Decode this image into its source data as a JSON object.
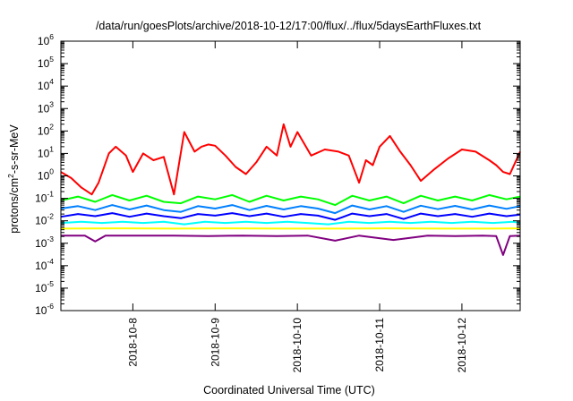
{
  "chart_data": {
    "type": "line",
    "title": "/data/run/goesPlots/archive/2018-10-12/17:00/flux/../flux/5daysEarthFluxes.txt",
    "xlabel": "Coordinated Universal Time (UTC)",
    "ylabel": "protons/cm²-s-sr-MeV",
    "ylabel_parts": {
      "main": "protons/cm",
      "sup": "2",
      "rest": "-s-sr-MeV"
    },
    "x_range": [
      "2018-10-07T03:00",
      "2018-10-12T17:00"
    ],
    "y_scale": "log",
    "y_range": [
      1e-06,
      1000000.0
    ],
    "y_ticks": [
      {
        "value": 1e-06,
        "base": "10",
        "exp": "-6"
      },
      {
        "value": 1e-05,
        "base": "10",
        "exp": "-5"
      },
      {
        "value": 0.0001,
        "base": "10",
        "exp": "-4"
      },
      {
        "value": 0.001,
        "base": "10",
        "exp": "-3"
      },
      {
        "value": 0.01,
        "base": "10",
        "exp": "-2"
      },
      {
        "value": 0.1,
        "base": "10",
        "exp": "-1"
      },
      {
        "value": 1.0,
        "base": "10",
        "exp": "0"
      },
      {
        "value": 10.0,
        "base": "10",
        "exp": "1"
      },
      {
        "value": 100.0,
        "base": "10",
        "exp": "2"
      },
      {
        "value": 1000.0,
        "base": "10",
        "exp": "3"
      },
      {
        "value": 10000.0,
        "base": "10",
        "exp": "4"
      },
      {
        "value": 100000.0,
        "base": "10",
        "exp": "5"
      },
      {
        "value": 1000000.0,
        "base": "10",
        "exp": "6"
      }
    ],
    "x_ticks": [
      {
        "label": "2018-10-8",
        "value": "2018-10-08T00:00"
      },
      {
        "label": "2018-10-9",
        "value": "2018-10-09T00:00"
      },
      {
        "label": "2018-10-10",
        "value": "2018-10-10T00:00"
      },
      {
        "label": "2018-10-11",
        "value": "2018-10-11T00:00"
      },
      {
        "label": "2018-10-12",
        "value": "2018-10-12T00:00"
      }
    ],
    "grid": false,
    "legend": "none",
    "series": [
      {
        "color": "#800080",
        "x": [
          "2018-10-07T03:00",
          "2018-10-07T10:00",
          "2018-10-07T13:00",
          "2018-10-07T16:00",
          "2018-10-07T22:00",
          "2018-10-08T05:00",
          "2018-10-08T12:00",
          "2018-10-08T22:00",
          "2018-10-09T08:00",
          "2018-10-09T18:00",
          "2018-10-10T03:00",
          "2018-10-10T11:00",
          "2018-10-10T18:00",
          "2018-10-11T04:00",
          "2018-10-11T14:00",
          "2018-10-11T22:00",
          "2018-10-12T06:00",
          "2018-10-12T10:00",
          "2018-10-12T12:00",
          "2018-10-12T14:00",
          "2018-10-12T17:00"
        ],
        "y": [
          0.0022,
          0.0022,
          0.0012,
          0.0022,
          0.0022,
          0.0022,
          0.0022,
          0.0021,
          0.0022,
          0.0021,
          0.0022,
          0.0013,
          0.0022,
          0.0014,
          0.0022,
          0.0021,
          0.0022,
          0.0021,
          0.0003,
          0.0021,
          0.0022
        ]
      },
      {
        "color": "#ffff00",
        "x": [
          "2018-10-07T03:00",
          "2018-10-07T22:00",
          "2018-10-08T12:00",
          "2018-10-09T04:00",
          "2018-10-09T20:00",
          "2018-10-10T10:00",
          "2018-10-11T02:00",
          "2018-10-11T18:00",
          "2018-10-12T08:00",
          "2018-10-12T17:00"
        ],
        "y": [
          0.0045,
          0.0046,
          0.0045,
          0.0046,
          0.0045,
          0.0045,
          0.0046,
          0.0045,
          0.0045,
          0.0046
        ]
      },
      {
        "color": "#00ffff",
        "x": [
          "2018-10-07T03:00",
          "2018-10-07T09:00",
          "2018-10-07T15:00",
          "2018-10-07T21:00",
          "2018-10-08T03:00",
          "2018-10-08T09:00",
          "2018-10-08T15:00",
          "2018-10-08T21:00",
          "2018-10-09T03:00",
          "2018-10-09T09:00",
          "2018-10-09T15:00",
          "2018-10-09T21:00",
          "2018-10-10T03:00",
          "2018-10-10T09:00",
          "2018-10-10T15:00",
          "2018-10-10T21:00",
          "2018-10-11T03:00",
          "2018-10-11T09:00",
          "2018-10-11T15:00",
          "2018-10-11T21:00",
          "2018-10-12T03:00",
          "2018-10-12T09:00",
          "2018-10-12T15:00",
          "2018-10-12T17:00"
        ],
        "y": [
          0.008,
          0.009,
          0.008,
          0.009,
          0.008,
          0.009,
          0.007,
          0.009,
          0.008,
          0.009,
          0.008,
          0.009,
          0.008,
          0.007,
          0.009,
          0.008,
          0.009,
          0.008,
          0.009,
          0.008,
          0.009,
          0.008,
          0.009,
          0.008
        ]
      },
      {
        "color": "#0000ff",
        "x": [
          "2018-10-07T03:00",
          "2018-10-07T08:00",
          "2018-10-07T13:00",
          "2018-10-07T18:00",
          "2018-10-07T23:00",
          "2018-10-08T04:00",
          "2018-10-08T09:00",
          "2018-10-08T14:00",
          "2018-10-08T19:00",
          "2018-10-09T00:00",
          "2018-10-09T05:00",
          "2018-10-09T10:00",
          "2018-10-09T15:00",
          "2018-10-09T20:00",
          "2018-10-10T01:00",
          "2018-10-10T06:00",
          "2018-10-10T11:00",
          "2018-10-10T16:00",
          "2018-10-10T21:00",
          "2018-10-11T02:00",
          "2018-10-11T07:00",
          "2018-10-11T12:00",
          "2018-10-11T17:00",
          "2018-10-11T22:00",
          "2018-10-12T03:00",
          "2018-10-12T08:00",
          "2018-10-12T13:00",
          "2018-10-12T17:00"
        ],
        "y": [
          0.015,
          0.02,
          0.016,
          0.022,
          0.015,
          0.021,
          0.016,
          0.013,
          0.02,
          0.017,
          0.022,
          0.016,
          0.021,
          0.015,
          0.02,
          0.017,
          0.011,
          0.021,
          0.016,
          0.02,
          0.012,
          0.021,
          0.016,
          0.02,
          0.015,
          0.021,
          0.016,
          0.019
        ]
      },
      {
        "color": "#0080ff",
        "x": [
          "2018-10-07T03:00",
          "2018-10-07T08:00",
          "2018-10-07T13:00",
          "2018-10-07T18:00",
          "2018-10-07T23:00",
          "2018-10-08T04:00",
          "2018-10-08T09:00",
          "2018-10-08T14:00",
          "2018-10-08T19:00",
          "2018-10-09T00:00",
          "2018-10-09T05:00",
          "2018-10-09T10:00",
          "2018-10-09T15:00",
          "2018-10-09T20:00",
          "2018-10-10T01:00",
          "2018-10-10T06:00",
          "2018-10-10T11:00",
          "2018-10-10T16:00",
          "2018-10-10T21:00",
          "2018-10-11T02:00",
          "2018-10-11T07:00",
          "2018-10-11T12:00",
          "2018-10-11T17:00",
          "2018-10-11T22:00",
          "2018-10-12T03:00",
          "2018-10-12T08:00",
          "2018-10-12T13:00",
          "2018-10-12T17:00"
        ],
        "y": [
          0.035,
          0.045,
          0.03,
          0.05,
          0.032,
          0.048,
          0.03,
          0.025,
          0.045,
          0.035,
          0.05,
          0.03,
          0.046,
          0.032,
          0.045,
          0.035,
          0.022,
          0.048,
          0.032,
          0.045,
          0.025,
          0.047,
          0.033,
          0.046,
          0.032,
          0.048,
          0.034,
          0.045
        ]
      },
      {
        "color": "#00ff00",
        "x": [
          "2018-10-07T03:00",
          "2018-10-07T08:00",
          "2018-10-07T13:00",
          "2018-10-07T18:00",
          "2018-10-07T23:00",
          "2018-10-08T04:00",
          "2018-10-08T09:00",
          "2018-10-08T14:00",
          "2018-10-08T19:00",
          "2018-10-09T00:00",
          "2018-10-09T05:00",
          "2018-10-09T10:00",
          "2018-10-09T15:00",
          "2018-10-09T20:00",
          "2018-10-10T01:00",
          "2018-10-10T06:00",
          "2018-10-10T11:00",
          "2018-10-10T16:00",
          "2018-10-10T21:00",
          "2018-10-11T02:00",
          "2018-10-11T07:00",
          "2018-10-11T12:00",
          "2018-10-11T17:00",
          "2018-10-11T22:00",
          "2018-10-12T03:00",
          "2018-10-12T08:00",
          "2018-10-12T13:00",
          "2018-10-12T17:00"
        ],
        "y": [
          0.08,
          0.12,
          0.07,
          0.14,
          0.08,
          0.13,
          0.07,
          0.06,
          0.12,
          0.09,
          0.14,
          0.07,
          0.13,
          0.08,
          0.12,
          0.09,
          0.05,
          0.13,
          0.08,
          0.12,
          0.06,
          0.13,
          0.08,
          0.12,
          0.08,
          0.14,
          0.09,
          0.12
        ]
      },
      {
        "color": "#ff0000",
        "x": [
          "2018-10-07T03:00",
          "2018-10-07T06:00",
          "2018-10-07T09:00",
          "2018-10-07T12:00",
          "2018-10-07T14:00",
          "2018-10-07T17:00",
          "2018-10-07T19:00",
          "2018-10-07T22:00",
          "2018-10-08T00:00",
          "2018-10-08T03:00",
          "2018-10-08T06:00",
          "2018-10-08T09:00",
          "2018-10-08T12:00",
          "2018-10-08T15:00",
          "2018-10-08T18:00",
          "2018-10-08T20:00",
          "2018-10-08T22:00",
          "2018-10-09T00:00",
          "2018-10-09T03:00",
          "2018-10-09T06:00",
          "2018-10-09T09:00",
          "2018-10-09T12:00",
          "2018-10-09T15:00",
          "2018-10-09T18:00",
          "2018-10-09T20:00",
          "2018-10-09T22:00",
          "2018-10-10T00:00",
          "2018-10-10T04:00",
          "2018-10-10T08:00",
          "2018-10-10T12:00",
          "2018-10-10T15:00",
          "2018-10-10T18:00",
          "2018-10-10T20:00",
          "2018-10-10T22:00",
          "2018-10-11T00:00",
          "2018-10-11T03:00",
          "2018-10-11T06:00",
          "2018-10-11T09:00",
          "2018-10-11T12:00",
          "2018-10-11T16:00",
          "2018-10-11T20:00",
          "2018-10-12T00:00",
          "2018-10-12T04:00",
          "2018-10-12T08:00",
          "2018-10-12T10:00",
          "2018-10-12T12:00",
          "2018-10-12T14:00",
          "2018-10-12T17:00"
        ],
        "y": [
          1.5,
          0.8,
          0.3,
          0.15,
          0.5,
          10,
          20,
          8,
          1.5,
          10,
          5,
          7,
          0.15,
          90,
          12,
          20,
          25,
          22,
          8,
          2.5,
          1.2,
          4,
          20,
          8,
          200,
          20,
          90,
          8,
          15,
          12,
          8,
          0.5,
          5,
          3,
          20,
          60,
          12,
          3,
          0.6,
          2,
          6,
          15,
          12,
          5,
          3,
          1.5,
          1.2,
          12
        ]
      }
    ]
  }
}
